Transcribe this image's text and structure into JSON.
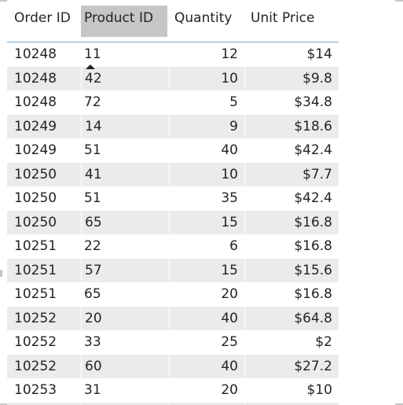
{
  "table": {
    "columns": [
      "Order ID",
      "Product ID",
      "Quantity",
      "Unit Price"
    ],
    "sorted_column": "Product ID",
    "sort_direction": "ascending",
    "rows": [
      [
        "10248",
        "11",
        "12",
        "$14"
      ],
      [
        "10248",
        "42",
        "10",
        "$9.8"
      ],
      [
        "10248",
        "72",
        "5",
        "$34.8"
      ],
      [
        "10249",
        "14",
        "9",
        "$18.6"
      ],
      [
        "10249",
        "51",
        "40",
        "$42.4"
      ],
      [
        "10250",
        "41",
        "10",
        "$7.7"
      ],
      [
        "10250",
        "51",
        "35",
        "$42.4"
      ],
      [
        "10250",
        "65",
        "15",
        "$16.8"
      ],
      [
        "10251",
        "22",
        "6",
        "$16.8"
      ],
      [
        "10251",
        "57",
        "15",
        "$15.6"
      ],
      [
        "10251",
        "65",
        "20",
        "$16.8"
      ],
      [
        "10252",
        "20",
        "40",
        "$64.8"
      ],
      [
        "10252",
        "33",
        "25",
        "$2"
      ],
      [
        "10252",
        "60",
        "40",
        "$27.2"
      ],
      [
        "10253",
        "31",
        "20",
        "$10"
      ]
    ]
  },
  "colors": {
    "header_underline": "#6fa7d8",
    "sorted_header_bg": "#c8c6c4",
    "alt_row_bg": "#ebebeb",
    "text": "#252423"
  },
  "icons": {
    "sort": "sort-ascending-icon"
  }
}
